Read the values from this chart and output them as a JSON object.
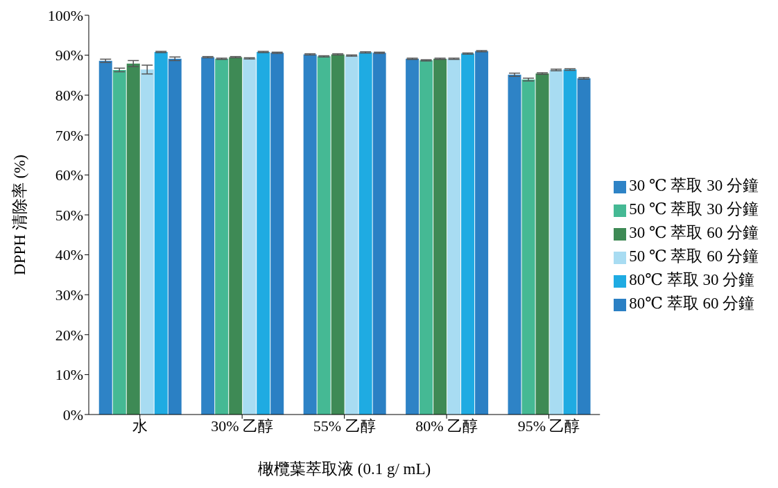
{
  "chart_data": {
    "type": "bar",
    "xlabel": "橄欖葉萃取液 (0.1 g/ mL)",
    "ylabel": "DPPH 清除率 (%)",
    "categories": [
      "水",
      "30% 乙醇",
      "55% 乙醇",
      "80% 乙醇",
      "95% 乙醇"
    ],
    "series": [
      {
        "name": "30 ℃  萃取 30 分鐘",
        "color": "#2e83c6",
        "values": [
          88.6,
          89.5,
          90.2,
          89.1,
          85.1
        ],
        "errors": [
          0.4,
          0.15,
          0.15,
          0.15,
          0.4
        ]
      },
      {
        "name": "50 ℃  萃取 30 分鐘",
        "color": "#45b994",
        "values": [
          86.3,
          89.1,
          89.7,
          88.7,
          83.9
        ],
        "errors": [
          0.45,
          0.15,
          0.15,
          0.15,
          0.35
        ]
      },
      {
        "name": "30 ℃  萃取 60 分鐘",
        "color": "#3e8a55",
        "values": [
          87.9,
          89.5,
          90.2,
          89.1,
          85.4
        ],
        "errors": [
          0.75,
          0.15,
          0.15,
          0.15,
          0.2
        ]
      },
      {
        "name": "50 ℃  萃取 60 分鐘",
        "color": "#a8dcf2",
        "values": [
          86.4,
          89.2,
          89.9,
          89.1,
          86.3
        ],
        "errors": [
          1.1,
          0.15,
          0.15,
          0.15,
          0.2
        ]
      },
      {
        "name": "80℃ 萃取 30 分鐘",
        "color": "#1fabe2",
        "values": [
          90.8,
          90.8,
          90.7,
          90.4,
          86.4
        ],
        "errors": [
          0.15,
          0.15,
          0.15,
          0.15,
          0.2
        ]
      },
      {
        "name": "80℃ 萃取 60 分鐘",
        "color": "#2b80c4",
        "values": [
          89.1,
          90.6,
          90.6,
          91.0,
          84.2
        ],
        "errors": [
          0.45,
          0.15,
          0.15,
          0.15,
          0.2
        ]
      }
    ],
    "ylim": [
      0,
      100
    ],
    "yticks": [
      {
        "value": 0,
        "label": "0%"
      },
      {
        "value": 10,
        "label": "10%"
      },
      {
        "value": 20,
        "label": "20%"
      },
      {
        "value": 30,
        "label": "30%"
      },
      {
        "value": 40,
        "label": "40%"
      },
      {
        "value": 50,
        "label": "50%"
      },
      {
        "value": 60,
        "label": "60%"
      },
      {
        "value": 70,
        "label": "70%"
      },
      {
        "value": 80,
        "label": "80%"
      },
      {
        "value": 90,
        "label": "90%"
      },
      {
        "value": 100,
        "label": "100%"
      }
    ],
    "grid": false,
    "legend": "right"
  }
}
